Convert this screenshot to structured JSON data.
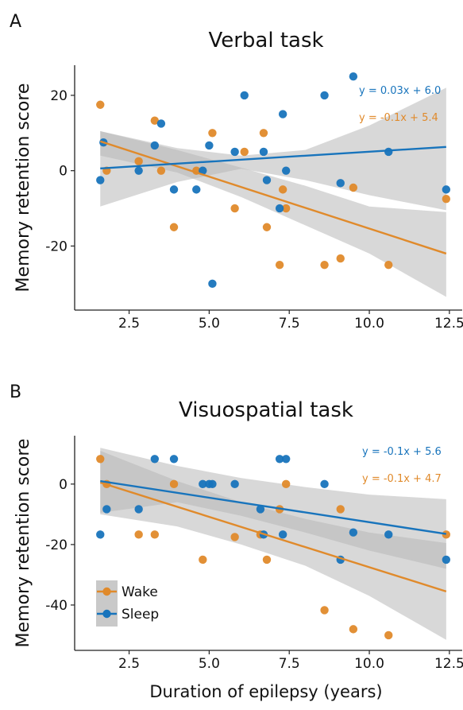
{
  "colors": {
    "wake": "#E08A2B",
    "sleep": "#1874BC",
    "ci": "#B8B8B8"
  },
  "xlabel": "Duration of epilepsy (years)",
  "legend": {
    "wake": "Wake",
    "sleep": "Sleep"
  },
  "chart_data": [
    {
      "type": "scatter",
      "panel": "A",
      "title": "Verbal task",
      "ylabel": "Memory retention score",
      "xlim": [
        0.8,
        12.9
      ],
      "ylim": [
        -37,
        28
      ],
      "xticks": [
        2.5,
        5.0,
        7.5,
        10.0,
        12.5
      ],
      "xtick_labels": [
        "2.5",
        "5.0",
        "7.5",
        "10.0",
        "12.5"
      ],
      "yticks": [
        -20,
        0,
        20
      ],
      "ytick_labels": [
        "-20",
        "0",
        "20"
      ],
      "grid": false,
      "series": [
        {
          "name": "Wake",
          "color": "#E08A2B",
          "equation": "y = -0.1x + 5.4",
          "fit": {
            "x": [
              1.6,
              12.4
            ],
            "y": [
              7.8,
              -22.0
            ]
          },
          "ci_upper": [
            [
              1.6,
              10.5
            ],
            [
              4.0,
              5.5
            ],
            [
              6.0,
              0.8
            ],
            [
              8.0,
              -4.0
            ],
            [
              10.0,
              -9.5
            ],
            [
              12.4,
              -11.0
            ]
          ],
          "ci_lower": [
            [
              1.6,
              4.0
            ],
            [
              4.0,
              -0.5
            ],
            [
              6.0,
              -7.0
            ],
            [
              8.0,
              -14.5
            ],
            [
              10.0,
              -22.0
            ],
            [
              12.4,
              -33.5
            ]
          ],
          "points": [
            [
              1.6,
              17.5
            ],
            [
              1.8,
              0
            ],
            [
              2.8,
              2.5
            ],
            [
              3.3,
              13.3
            ],
            [
              3.5,
              0
            ],
            [
              3.9,
              -15
            ],
            [
              4.6,
              0
            ],
            [
              5.1,
              10
            ],
            [
              5.8,
              -10
            ],
            [
              6.1,
              5
            ],
            [
              6.7,
              10
            ],
            [
              6.8,
              -15
            ],
            [
              7.2,
              -25
            ],
            [
              7.3,
              -5
            ],
            [
              7.4,
              -10
            ],
            [
              8.6,
              -25
            ],
            [
              9.1,
              -23.3
            ],
            [
              9.5,
              -4.5
            ],
            [
              10.6,
              -25
            ],
            [
              12.4,
              -7.5
            ]
          ]
        },
        {
          "name": "Sleep",
          "color": "#1874BC",
          "equation": "y = 0.03x + 6.0",
          "fit": {
            "x": [
              1.6,
              12.4
            ],
            "y": [
              0.6,
              6.3
            ]
          },
          "ci_upper": [
            [
              1.6,
              10.5
            ],
            [
              4.0,
              6.0
            ],
            [
              6.0,
              4.0
            ],
            [
              8.0,
              5.5
            ],
            [
              10.0,
              12.0
            ],
            [
              12.4,
              22.0
            ]
          ],
          "ci_lower": [
            [
              1.6,
              -9.5
            ],
            [
              4.0,
              -3.0
            ],
            [
              6.0,
              0.5
            ],
            [
              8.0,
              -2.5
            ],
            [
              10.0,
              -6.5
            ],
            [
              12.4,
              -10.5
            ]
          ],
          "points": [
            [
              1.6,
              -2.5
            ],
            [
              1.7,
              7.5
            ],
            [
              2.8,
              0
            ],
            [
              3.3,
              6.7
            ],
            [
              3.5,
              12.5
            ],
            [
              3.9,
              -5
            ],
            [
              4.6,
              -5
            ],
            [
              4.8,
              0
            ],
            [
              5.0,
              6.7
            ],
            [
              5.1,
              -30
            ],
            [
              5.8,
              5
            ],
            [
              6.1,
              20
            ],
            [
              6.7,
              5
            ],
            [
              6.8,
              -2.5
            ],
            [
              7.2,
              -10
            ],
            [
              7.3,
              15
            ],
            [
              7.4,
              0
            ],
            [
              8.6,
              20
            ],
            [
              9.1,
              -3.3
            ],
            [
              9.5,
              25
            ],
            [
              10.6,
              5
            ],
            [
              12.4,
              -5
            ]
          ]
        }
      ]
    },
    {
      "type": "scatter",
      "panel": "B",
      "title": "Visuospatial task",
      "ylabel": "Memory retention score",
      "xlim": [
        0.8,
        12.9
      ],
      "ylim": [
        -55,
        16
      ],
      "xticks": [
        2.5,
        5.0,
        7.5,
        10.0,
        12.5
      ],
      "xtick_labels": [
        "2.5",
        "5.0",
        "7.5",
        "10.0",
        "12.5"
      ],
      "yticks": [
        -40,
        -20,
        0
      ],
      "ytick_labels": [
        "-40",
        "-20",
        "0"
      ],
      "grid": false,
      "legend_position": "bottom-left",
      "series": [
        {
          "name": "Wake",
          "color": "#E08A2B",
          "equation": "y = -0.1x + 4.7",
          "fit": {
            "x": [
              1.6,
              12.4
            ],
            "y": [
              0.5,
              -35.5
            ]
          },
          "ci_upper": [
            [
              1.6,
              11.0
            ],
            [
              4.0,
              1.0
            ],
            [
              6.0,
              -6.0
            ],
            [
              8.0,
              -11.5
            ],
            [
              10.0,
              -16.0
            ],
            [
              12.4,
              -19.5
            ]
          ],
          "ci_lower": [
            [
              1.6,
              -10.0
            ],
            [
              4.0,
              -14.0
            ],
            [
              6.0,
              -20.0
            ],
            [
              8.0,
              -27.0
            ],
            [
              10.0,
              -37.0
            ],
            [
              12.4,
              -51.5
            ]
          ],
          "points": [
            [
              1.6,
              8.3
            ],
            [
              1.8,
              0
            ],
            [
              2.8,
              -16.7
            ],
            [
              3.3,
              -16.7
            ],
            [
              3.9,
              0
            ],
            [
              4.8,
              -25
            ],
            [
              5.8,
              -17.5
            ],
            [
              6.6,
              -16.7
            ],
            [
              6.8,
              -25
            ],
            [
              7.2,
              -8.3
            ],
            [
              7.4,
              0
            ],
            [
              8.6,
              -41.7
            ],
            [
              9.1,
              -8.3
            ],
            [
              9.5,
              -48
            ],
            [
              10.6,
              -50
            ],
            [
              12.4,
              -16.7
            ]
          ]
        },
        {
          "name": "Sleep",
          "color": "#1874BC",
          "equation": "y = -0.1x + 5.6",
          "fit": {
            "x": [
              1.6,
              12.4
            ],
            "y": [
              1.0,
              -16.5
            ]
          },
          "ci_upper": [
            [
              1.6,
              12.0
            ],
            [
              4.0,
              6.0
            ],
            [
              6.0,
              2.0
            ],
            [
              8.0,
              -1.0
            ],
            [
              10.0,
              -3.5
            ],
            [
              12.4,
              -5.0
            ]
          ],
          "ci_lower": [
            [
              1.6,
              -9.5
            ],
            [
              4.0,
              -6.0
            ],
            [
              6.0,
              -10.5
            ],
            [
              8.0,
              -16.0
            ],
            [
              10.0,
              -22.0
            ],
            [
              12.4,
              -28.0
            ]
          ],
          "points": [
            [
              1.6,
              -16.7
            ],
            [
              1.8,
              -8.3
            ],
            [
              2.8,
              -8.3
            ],
            [
              3.3,
              8.3
            ],
            [
              3.9,
              8.3
            ],
            [
              4.8,
              0
            ],
            [
              5.0,
              0
            ],
            [
              5.1,
              0
            ],
            [
              5.8,
              0
            ],
            [
              6.6,
              -8.3
            ],
            [
              6.7,
              -16.7
            ],
            [
              7.2,
              8.3
            ],
            [
              7.3,
              -16.7
            ],
            [
              7.4,
              8.3
            ],
            [
              8.6,
              0
            ],
            [
              9.1,
              -25
            ],
            [
              9.5,
              -16
            ],
            [
              10.6,
              -16.7
            ],
            [
              12.4,
              -25
            ]
          ]
        }
      ]
    }
  ]
}
